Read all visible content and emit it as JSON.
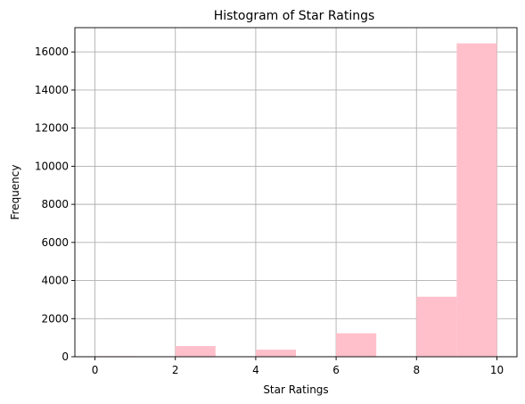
{
  "chart_data": {
    "type": "bar",
    "title": "Histogram of Star Ratings",
    "xlabel": "Star Ratings",
    "ylabel": "Frequency",
    "bins": [
      {
        "start": 0,
        "end": 1,
        "value": 30
      },
      {
        "start": 1,
        "end": 2,
        "value": 0
      },
      {
        "start": 2,
        "end": 3,
        "value": 560
      },
      {
        "start": 3,
        "end": 4,
        "value": 0
      },
      {
        "start": 4,
        "end": 5,
        "value": 370
      },
      {
        "start": 5,
        "end": 6,
        "value": 0
      },
      {
        "start": 6,
        "end": 7,
        "value": 1230
      },
      {
        "start": 7,
        "end": 8,
        "value": 0
      },
      {
        "start": 8,
        "end": 9,
        "value": 3150
      },
      {
        "start": 9,
        "end": 10,
        "value": 16450
      }
    ],
    "xlim": [
      -0.5,
      10.5
    ],
    "ylim": [
      0,
      17275
    ],
    "xticks": [
      0,
      2,
      4,
      6,
      8,
      10
    ],
    "xtick_labels": [
      "0",
      "2",
      "4",
      "6",
      "8",
      "10"
    ],
    "yticks": [
      0,
      2000,
      4000,
      6000,
      8000,
      10000,
      12000,
      14000,
      16000
    ],
    "ytick_labels": [
      "0",
      "2000",
      "4000",
      "6000",
      "8000",
      "10000",
      "12000",
      "14000",
      "16000"
    ],
    "grid": true,
    "bar_color": "#ffc0cb"
  }
}
